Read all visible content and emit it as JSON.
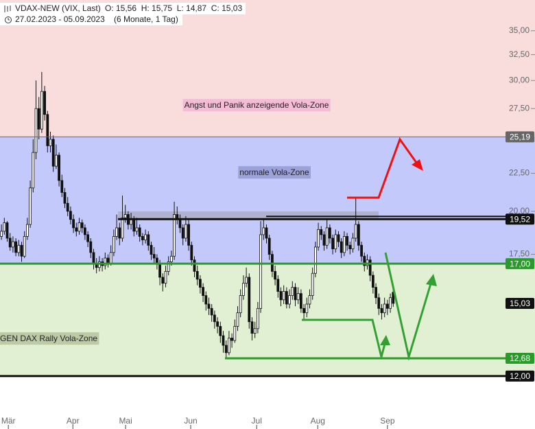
{
  "chart_data": {
    "type": "candlestick",
    "title": "VDAX-NEW (VIX, Last)",
    "ohlc_text": "O: 15,56  H: 15,75  L: 14,87  C: 15,03",
    "date_range": "27.02.2023 - 05.09.2023",
    "period": "(6 Monate, 1 Tag)",
    "log_scale": true,
    "ylim": [
      10.74,
      38.5
    ],
    "xlim": [
      -0.5,
      137.6
    ],
    "yticks": [
      {
        "value": 35,
        "label": "35,00"
      },
      {
        "value": 32.5,
        "label": "32,50"
      },
      {
        "value": 30,
        "label": "30,00"
      },
      {
        "value": 27.5,
        "label": "27,50"
      },
      {
        "value": 22.5,
        "label": "22,50"
      },
      {
        "value": 20,
        "label": "20,00"
      },
      {
        "value": 17.5,
        "label": "17,50"
      }
    ],
    "xticks": [
      {
        "value": 2.4,
        "label": "Mär"
      },
      {
        "value": 24.8,
        "label": "Apr"
      },
      {
        "value": 43.1,
        "label": "Mai"
      },
      {
        "value": 65.7,
        "label": "Jun"
      },
      {
        "value": 88.6,
        "label": "Jul"
      },
      {
        "value": 109.8,
        "label": "Aug"
      },
      {
        "value": 134,
        "label": "Sep"
      }
    ],
    "zones": [
      {
        "name": "Angst und Panik anzeigende Vola-Zone",
        "lower": 25.19,
        "color": "#f9dcdc",
        "label_color": "#f4bcd6"
      },
      {
        "name": "normale Vola-Zone",
        "lower": 17,
        "upper": 25.19,
        "color": "#c3c9fb",
        "label_color": "#9ba1d9"
      },
      {
        "name": "GEN DAX Rally Vola-Zone",
        "lower": 12,
        "upper": 17,
        "color": "#e1efd2",
        "label_color": "#bccaa6"
      }
    ],
    "levels": [
      {
        "value": 25.19,
        "label": "25,19",
        "color": "#666666"
      },
      {
        "value": 19.52,
        "label": "19,52",
        "color": "#111111"
      },
      {
        "value": 17,
        "label": "17,00",
        "color": "#2a9a2a"
      },
      {
        "value": 15.03,
        "label": "15,03",
        "color": "#111111"
      },
      {
        "value": 12.68,
        "label": "12,68",
        "color": "#2a9a2a"
      },
      {
        "value": 12,
        "label": "12,00",
        "color": "#111111"
      }
    ],
    "candles": [
      [
        18.5,
        19.2,
        18.3,
        18.8
      ],
      [
        18.8,
        19.6,
        18.6,
        19.3
      ],
      [
        19.3,
        19.4,
        18.2,
        18.4
      ],
      [
        18.4,
        18.7,
        17.7,
        17.9
      ],
      [
        17.9,
        18.5,
        17.6,
        18.2
      ],
      [
        18.2,
        18.4,
        17.4,
        17.6
      ],
      [
        17.6,
        18.3,
        17.4,
        18.0
      ],
      [
        18.0,
        18.2,
        17.1,
        17.4
      ],
      [
        17.4,
        18.8,
        17.3,
        18.5
      ],
      [
        18.5,
        19.6,
        18.3,
        19.2
      ],
      [
        19.2,
        22.0,
        19.0,
        21.5
      ],
      [
        21.5,
        25.0,
        21.2,
        24.0
      ],
      [
        24.0,
        30.0,
        23.5,
        27.5
      ],
      [
        27.5,
        28.5,
        25.0,
        25.8
      ],
      [
        25.8,
        30.8,
        25.5,
        29.0
      ],
      [
        29.0,
        29.5,
        26.5,
        27.0
      ],
      [
        27.0,
        27.3,
        24.0,
        24.5
      ],
      [
        24.5,
        25.6,
        24.0,
        25.0
      ],
      [
        25.0,
        25.3,
        22.6,
        23.0
      ],
      [
        23.0,
        24.6,
        22.8,
        23.8
      ],
      [
        23.8,
        24.0,
        21.6,
        22.0
      ],
      [
        22.0,
        22.4,
        20.9,
        21.2
      ],
      [
        21.2,
        21.5,
        20.2,
        20.5
      ],
      [
        20.5,
        20.9,
        19.7,
        20.0
      ],
      [
        20.0,
        20.3,
        19.2,
        19.5
      ],
      [
        19.5,
        19.8,
        18.7,
        19.0
      ],
      [
        19.0,
        19.3,
        18.5,
        18.8
      ],
      [
        18.8,
        19.6,
        18.6,
        19.3
      ],
      [
        19.3,
        19.5,
        18.7,
        19.0
      ],
      [
        19.0,
        19.2,
        18.3,
        18.6
      ],
      [
        18.6,
        18.8,
        17.9,
        18.2
      ],
      [
        18.2,
        18.4,
        17.3,
        17.6
      ],
      [
        17.6,
        17.8,
        16.7,
        17.0
      ],
      [
        17.0,
        17.3,
        16.5,
        16.8
      ],
      [
        16.8,
        17.4,
        16.6,
        17.1
      ],
      [
        17.1,
        17.3,
        16.6,
        16.9
      ],
      [
        16.9,
        17.6,
        16.7,
        17.3
      ],
      [
        17.3,
        17.5,
        16.8,
        17.0
      ],
      [
        17.0,
        18.0,
        16.9,
        17.6
      ],
      [
        17.6,
        18.9,
        17.4,
        18.5
      ],
      [
        18.5,
        19.8,
        18.3,
        19.0
      ],
      [
        19.0,
        19.3,
        18.0,
        18.4
      ],
      [
        18.4,
        21.0,
        18.2,
        19.6
      ],
      [
        19.6,
        20.4,
        19.3,
        19.8
      ],
      [
        19.8,
        20.0,
        18.9,
        19.2
      ],
      [
        19.2,
        19.9,
        18.9,
        19.5
      ],
      [
        19.5,
        19.7,
        18.5,
        18.8
      ],
      [
        18.8,
        19.6,
        18.6,
        19.0
      ],
      [
        19.0,
        19.2,
        18.2,
        18.5
      ],
      [
        18.5,
        18.7,
        18.0,
        18.3
      ],
      [
        18.3,
        18.9,
        18.1,
        18.6
      ],
      [
        18.6,
        18.8,
        17.7,
        18.0
      ],
      [
        18.0,
        18.2,
        17.2,
        17.5
      ],
      [
        17.5,
        17.9,
        17.0,
        17.3
      ],
      [
        17.3,
        17.5,
        16.7,
        17.0
      ],
      [
        17.0,
        17.2,
        15.9,
        16.3
      ],
      [
        16.3,
        16.5,
        15.6,
        16.0
      ],
      [
        16.0,
        16.9,
        15.8,
        16.6
      ],
      [
        16.6,
        17.4,
        16.4,
        17.1
      ],
      [
        17.1,
        17.7,
        16.9,
        17.4
      ],
      [
        17.4,
        20.6,
        17.2,
        19.8
      ],
      [
        19.8,
        20.3,
        19.2,
        19.5
      ],
      [
        19.5,
        19.8,
        18.7,
        19.0
      ],
      [
        19.0,
        19.2,
        18.0,
        18.4
      ],
      [
        18.4,
        19.7,
        18.2,
        19.2
      ],
      [
        19.2,
        19.5,
        17.7,
        18.0
      ],
      [
        18.0,
        18.2,
        16.9,
        17.2
      ],
      [
        17.2,
        17.4,
        16.3,
        16.6
      ],
      [
        16.6,
        16.9,
        15.9,
        16.2
      ],
      [
        16.2,
        16.4,
        15.5,
        15.8
      ],
      [
        15.8,
        16.0,
        15.1,
        15.4
      ],
      [
        15.4,
        15.6,
        14.7,
        15.0
      ],
      [
        15.0,
        15.3,
        14.5,
        14.8
      ],
      [
        14.8,
        15.0,
        14.2,
        14.5
      ],
      [
        14.5,
        14.7,
        13.9,
        14.2
      ],
      [
        14.2,
        14.4,
        13.7,
        14.0
      ],
      [
        14.0,
        14.2,
        13.3,
        13.6
      ],
      [
        13.6,
        13.8,
        12.9,
        13.2
      ],
      [
        13.2,
        13.4,
        12.68,
        12.9
      ],
      [
        12.9,
        13.8,
        12.8,
        13.5
      ],
      [
        13.5,
        13.7,
        13.1,
        13.4
      ],
      [
        13.4,
        14.3,
        13.3,
        14.0
      ],
      [
        14.0,
        14.9,
        13.8,
        14.6
      ],
      [
        14.6,
        15.7,
        14.4,
        15.4
      ],
      [
        15.4,
        16.4,
        15.2,
        16.0
      ],
      [
        16.0,
        16.8,
        15.8,
        16.3
      ],
      [
        16.3,
        16.5,
        13.9,
        14.2
      ],
      [
        14.2,
        14.4,
        13.4,
        13.7
      ],
      [
        13.7,
        14.2,
        13.5,
        13.9
      ],
      [
        13.9,
        15.1,
        13.7,
        14.8
      ],
      [
        14.8,
        19.4,
        14.6,
        18.6
      ],
      [
        18.6,
        19.5,
        18.3,
        19.0
      ],
      [
        19.0,
        19.2,
        18.1,
        18.4
      ],
      [
        18.4,
        18.6,
        17.2,
        17.5
      ],
      [
        17.5,
        17.7,
        16.3,
        16.6
      ],
      [
        16.6,
        16.9,
        15.9,
        16.2
      ],
      [
        16.2,
        16.4,
        15.3,
        15.6
      ],
      [
        15.6,
        15.8,
        14.9,
        15.2
      ],
      [
        15.2,
        15.9,
        15.0,
        15.6
      ],
      [
        15.6,
        15.8,
        14.8,
        15.0
      ],
      [
        15.0,
        15.7,
        14.8,
        15.4
      ],
      [
        15.4,
        16.1,
        15.2,
        15.8
      ],
      [
        15.8,
        16.0,
        14.9,
        15.2
      ],
      [
        15.2,
        15.8,
        15.0,
        15.5
      ],
      [
        15.5,
        15.7,
        14.6,
        14.8
      ],
      [
        14.8,
        15.0,
        14.3,
        14.6
      ],
      [
        14.6,
        15.3,
        14.4,
        15.0
      ],
      [
        15.0,
        15.7,
        14.8,
        15.4
      ],
      [
        15.4,
        16.8,
        15.2,
        16.5
      ],
      [
        16.5,
        18.2,
        16.3,
        17.9
      ],
      [
        17.9,
        19.3,
        17.7,
        18.9
      ],
      [
        18.9,
        19.1,
        18.3,
        18.6
      ],
      [
        18.6,
        18.8,
        17.7,
        18.0
      ],
      [
        18.0,
        19.5,
        17.8,
        19.0
      ],
      [
        19.0,
        19.2,
        18.1,
        18.4
      ],
      [
        18.4,
        18.6,
        17.5,
        17.8
      ],
      [
        17.8,
        18.9,
        17.6,
        18.6
      ],
      [
        18.6,
        18.8,
        17.9,
        18.2
      ],
      [
        18.2,
        18.4,
        17.3,
        17.6
      ],
      [
        17.6,
        18.8,
        17.4,
        18.5
      ],
      [
        18.5,
        18.7,
        17.7,
        18.0
      ],
      [
        18.0,
        18.2,
        17.5,
        17.8
      ],
      [
        17.8,
        18.7,
        17.6,
        18.4
      ],
      [
        18.4,
        20.8,
        18.2,
        19.2
      ],
      [
        19.2,
        19.4,
        17.7,
        18.0
      ],
      [
        18.0,
        18.2,
        17.1,
        17.4
      ],
      [
        17.4,
        17.6,
        16.6,
        16.9
      ],
      [
        16.9,
        17.5,
        16.7,
        17.2
      ],
      [
        17.2,
        17.4,
        16.1,
        16.4
      ],
      [
        16.4,
        16.6,
        15.5,
        15.8
      ],
      [
        15.8,
        16.0,
        15.0,
        15.3
      ],
      [
        15.3,
        15.5,
        14.5,
        14.8
      ],
      [
        14.8,
        15.0,
        14.3,
        14.6
      ],
      [
        14.6,
        15.3,
        14.4,
        15.0
      ],
      [
        15.0,
        15.2,
        14.5,
        14.8
      ],
      [
        14.8,
        15.5,
        14.6,
        15.3
      ],
      [
        15.56,
        15.75,
        14.87,
        15.03
      ]
    ]
  }
}
